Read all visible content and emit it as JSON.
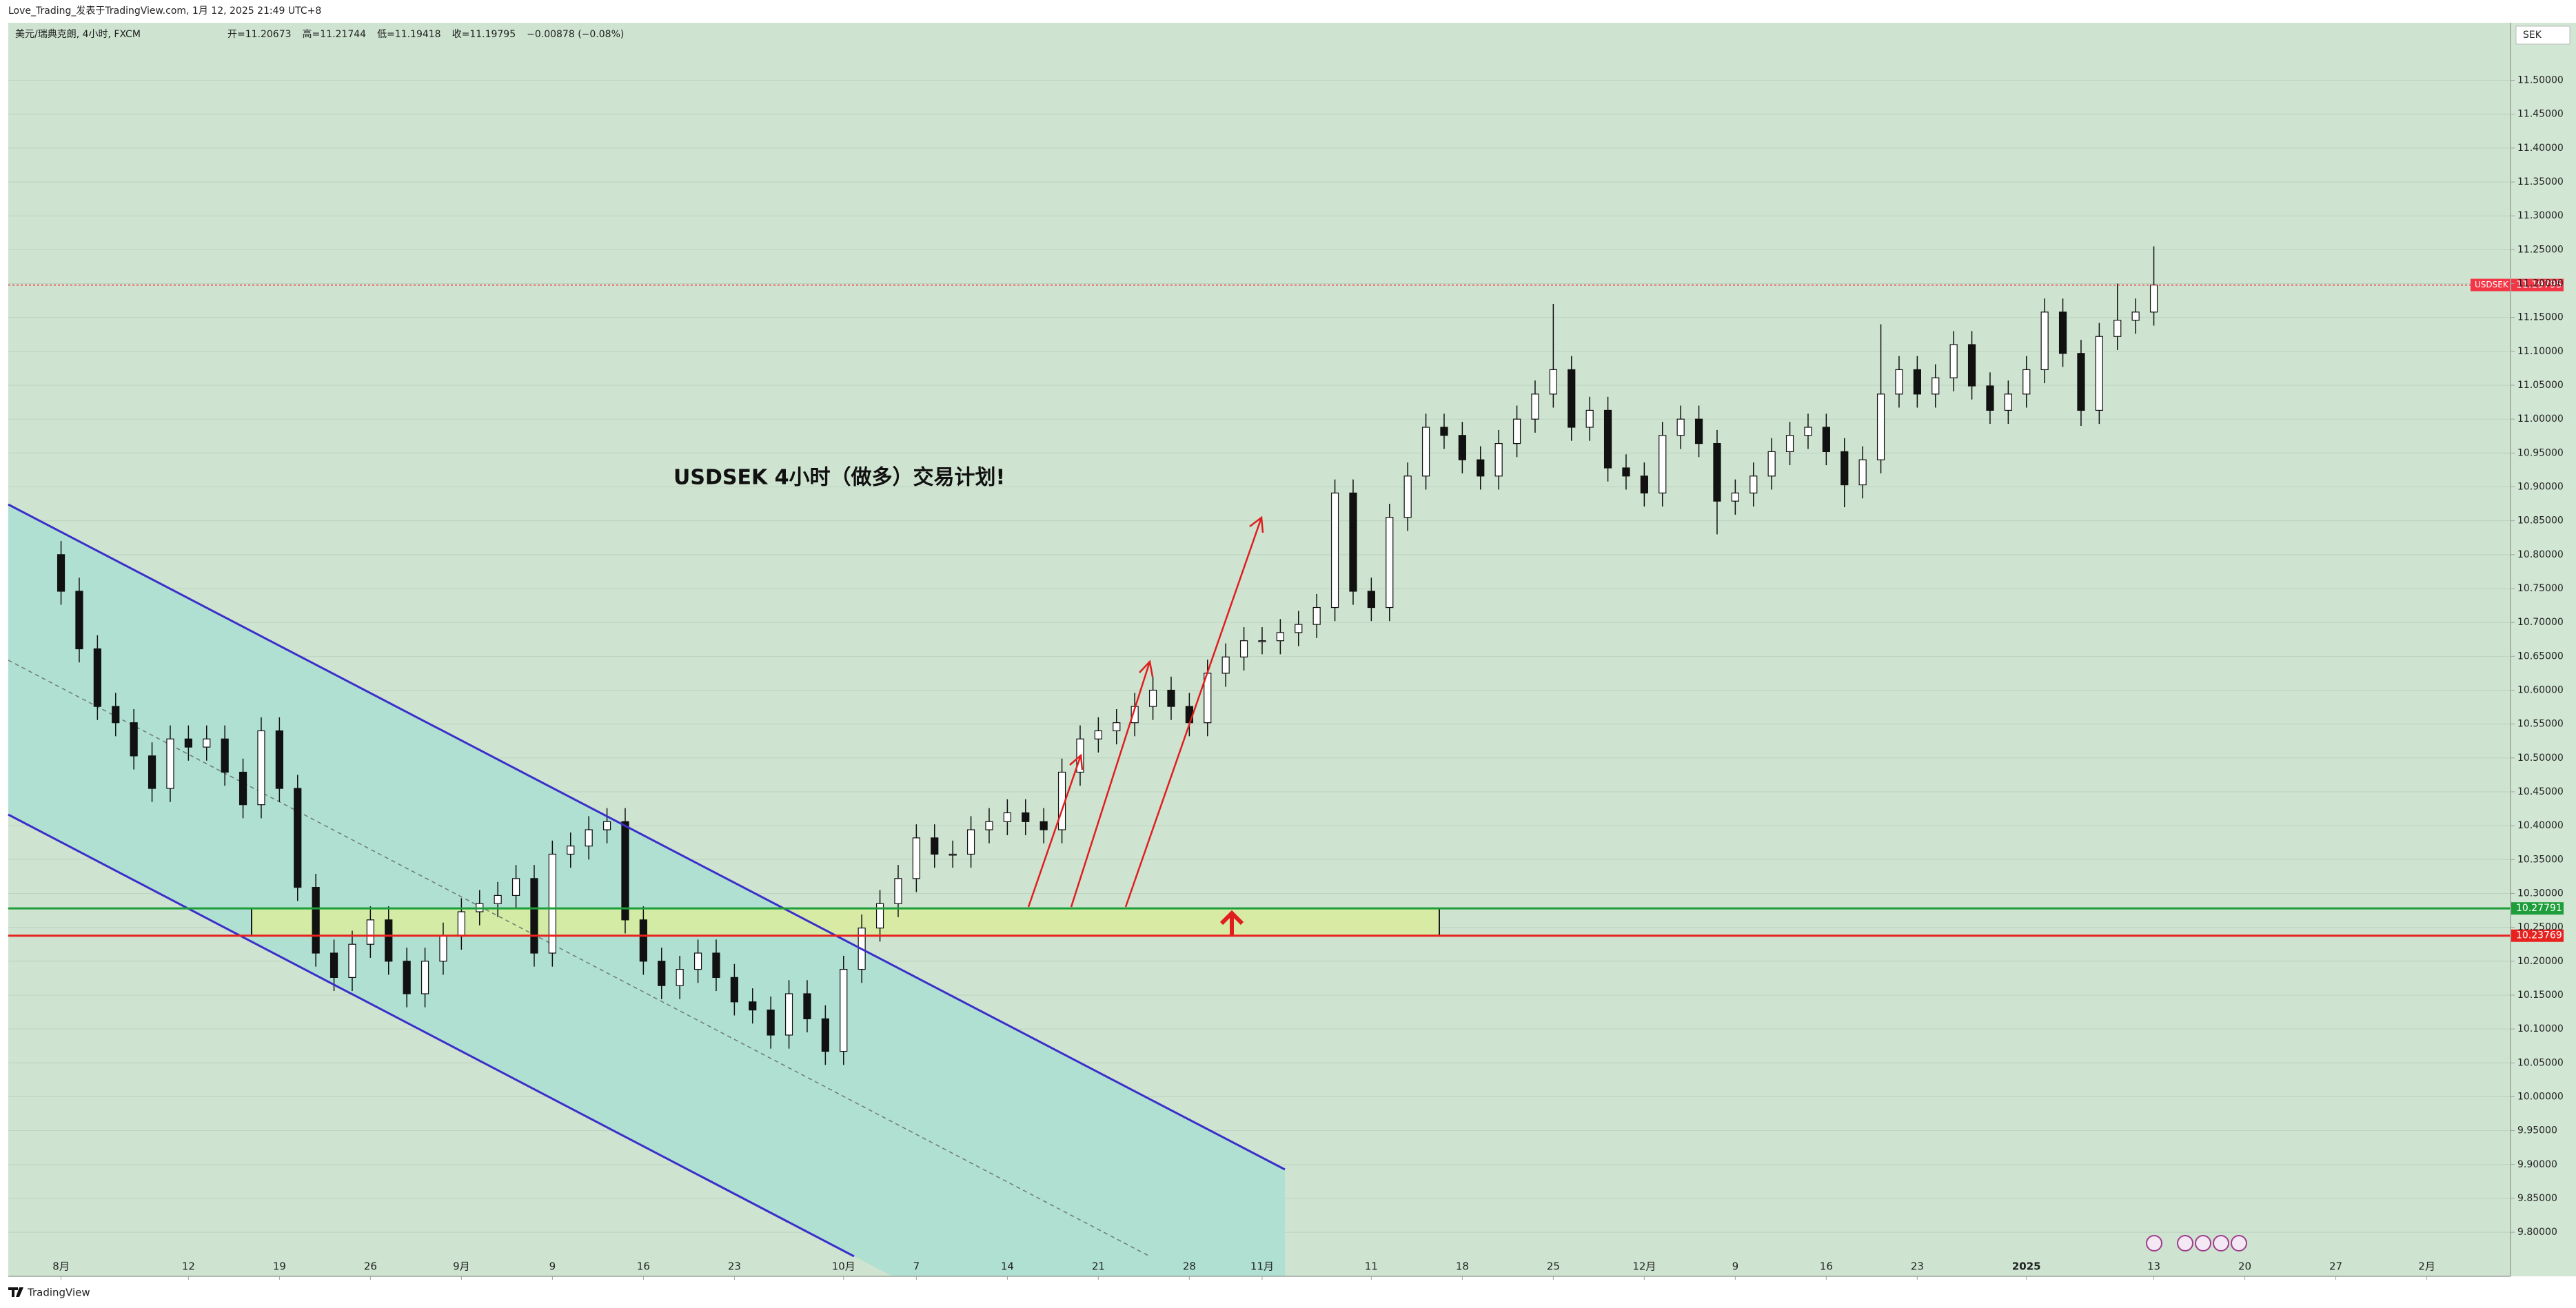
{
  "chart_data": {
    "type": "candlestick",
    "source_line": "Love_Trading_发表于TradingView.com, 1月 12, 2025 21:49 UTC+8",
    "legend_title": "美元/瑞典克朗, 4小时, FXCM",
    "legend_values": [
      "开=11.20673",
      "高=11.21744",
      "低=11.19418",
      "收=11.19795",
      "−0.00878 (−0.08%)"
    ],
    "annotation": "USDSEK  4小时（做多）交易计划!",
    "currency": "SEK",
    "symbol": "USDSEK",
    "last_price": 11.19795,
    "last_color": "#f23645",
    "levels": [
      {
        "value": 10.27791,
        "color": "#1e9e3a"
      },
      {
        "value": 10.23769,
        "color": "#e8231f"
      }
    ],
    "zone_color": "#d9ec9c",
    "up_color": "#ffffff",
    "down_color": "#111111",
    "grid": true,
    "footer": "TradingView",
    "x": [
      0,
      1,
      2,
      3,
      4,
      5,
      6,
      7,
      8,
      9,
      10,
      11,
      12,
      13,
      14,
      15,
      16,
      17,
      18,
      19,
      20,
      21,
      22,
      23,
      24,
      25,
      26,
      27,
      28,
      29,
      30,
      31,
      32,
      33,
      34,
      35,
      36,
      37,
      38,
      39,
      40,
      41,
      42,
      43,
      44,
      45,
      46,
      47,
      48,
      49,
      50,
      51,
      52,
      53,
      54,
      55,
      56,
      57,
      58,
      59,
      60,
      61,
      62,
      63,
      64,
      65,
      66,
      67,
      68,
      69,
      70,
      71,
      72,
      73,
      74,
      75,
      76,
      77,
      78,
      79,
      80,
      81,
      82,
      83,
      84,
      85,
      86,
      87,
      88,
      89,
      90,
      91,
      92,
      93,
      94,
      95,
      96,
      97,
      98,
      99,
      100,
      101,
      102,
      103,
      104,
      105,
      106,
      107,
      108,
      109,
      110,
      111,
      112,
      113,
      114,
      115
    ],
    "open": [
      10.8,
      10.746,
      10.661,
      10.576,
      10.552,
      10.503,
      10.455,
      10.528,
      10.516,
      10.528,
      10.479,
      10.431,
      10.54,
      10.455,
      10.309,
      10.212,
      10.176,
      10.225,
      10.261,
      10.2,
      10.152,
      10.2,
      10.237,
      10.273,
      10.285,
      10.297,
      10.322,
      10.212,
      10.358,
      10.37,
      10.394,
      10.406,
      10.261,
      10.2,
      10.164,
      10.188,
      10.212,
      10.176,
      10.14,
      10.128,
      10.091,
      10.152,
      10.115,
      10.067,
      10.188,
      10.249,
      10.285,
      10.322,
      10.382,
      10.358,
      10.358,
      10.394,
      10.406,
      10.419,
      10.406,
      10.394,
      10.479,
      10.528,
      10.54,
      10.552,
      10.576,
      10.6,
      10.576,
      10.552,
      10.625,
      10.649,
      10.673,
      10.673,
      10.685,
      10.697,
      10.722,
      10.891,
      10.746,
      10.722,
      10.855,
      10.916,
      10.988,
      10.976,
      10.94,
      10.916,
      10.964,
      11.0,
      11.037,
      11.073,
      10.988,
      11.013,
      10.928,
      10.916,
      10.891,
      10.976,
      11.0,
      10.964,
      10.879,
      10.891,
      10.916,
      10.952,
      10.976,
      10.988,
      10.952,
      10.903,
      10.94,
      11.037,
      11.073,
      11.037,
      11.061,
      11.11,
      11.049,
      11.013,
      11.037,
      11.073,
      11.158,
      11.097,
      11.013,
      11.122,
      11.146,
      11.158
    ],
    "high": [
      10.82,
      10.766,
      10.681,
      10.596,
      10.572,
      10.523,
      10.548,
      10.548,
      10.548,
      10.548,
      10.499,
      10.56,
      10.56,
      10.475,
      10.329,
      10.232,
      10.245,
      10.281,
      10.281,
      10.22,
      10.22,
      10.257,
      10.293,
      10.305,
      10.317,
      10.342,
      10.342,
      10.378,
      10.39,
      10.414,
      10.426,
      10.426,
      10.281,
      10.22,
      10.208,
      10.232,
      10.232,
      10.196,
      10.16,
      10.148,
      10.172,
      10.172,
      10.135,
      10.208,
      10.269,
      10.305,
      10.342,
      10.402,
      10.402,
      10.378,
      10.414,
      10.426,
      10.439,
      10.439,
      10.426,
      10.499,
      10.548,
      10.56,
      10.572,
      10.596,
      10.62,
      10.62,
      10.596,
      10.645,
      10.669,
      10.693,
      10.693,
      10.705,
      10.717,
      10.742,
      10.911,
      10.911,
      10.766,
      10.875,
      10.936,
      11.008,
      11.008,
      10.996,
      10.96,
      10.984,
      11.02,
      11.057,
      11.17,
      11.093,
      11.033,
      11.033,
      10.948,
      10.936,
      10.996,
      11.02,
      11.02,
      10.984,
      10.911,
      10.936,
      10.972,
      10.996,
      11.008,
      11.008,
      10.972,
      10.96,
      11.14,
      11.093,
      11.093,
      11.081,
      11.13,
      11.13,
      11.069,
      11.057,
      11.093,
      11.178,
      11.178,
      11.117,
      11.142,
      11.2,
      11.178,
      11.255
    ],
    "low": [
      10.726,
      10.641,
      10.556,
      10.532,
      10.483,
      10.435,
      10.435,
      10.496,
      10.496,
      10.459,
      10.411,
      10.411,
      10.435,
      10.289,
      10.192,
      10.156,
      10.156,
      10.205,
      10.18,
      10.132,
      10.132,
      10.18,
      10.217,
      10.253,
      10.265,
      10.277,
      10.192,
      10.192,
      10.338,
      10.35,
      10.374,
      10.241,
      10.18,
      10.144,
      10.144,
      10.168,
      10.156,
      10.12,
      10.108,
      10.071,
      10.071,
      10.095,
      10.047,
      10.047,
      10.168,
      10.229,
      10.265,
      10.302,
      10.338,
      10.338,
      10.338,
      10.374,
      10.386,
      10.386,
      10.374,
      10.374,
      10.459,
      10.508,
      10.52,
      10.532,
      10.556,
      10.556,
      10.532,
      10.532,
      10.605,
      10.629,
      10.653,
      10.653,
      10.665,
      10.677,
      10.702,
      10.726,
      10.702,
      10.702,
      10.835,
      10.896,
      10.956,
      10.92,
      10.896,
      10.896,
      10.944,
      10.98,
      11.017,
      10.968,
      10.968,
      10.908,
      10.896,
      10.871,
      10.871,
      10.956,
      10.944,
      10.83,
      10.859,
      10.871,
      10.896,
      10.932,
      10.956,
      10.932,
      10.87,
      10.883,
      10.92,
      11.017,
      11.017,
      11.017,
      11.041,
      11.029,
      10.993,
      10.993,
      11.017,
      11.053,
      11.077,
      10.99,
      10.993,
      11.102,
      11.126,
      11.138
    ],
    "close": [
      10.746,
      10.661,
      10.576,
      10.552,
      10.503,
      10.455,
      10.528,
      10.516,
      10.528,
      10.479,
      10.431,
      10.54,
      10.455,
      10.309,
      10.212,
      10.176,
      10.225,
      10.261,
      10.2,
      10.152,
      10.2,
      10.237,
      10.273,
      10.285,
      10.297,
      10.322,
      10.212,
      10.358,
      10.37,
      10.394,
      10.406,
      10.261,
      10.2,
      10.164,
      10.188,
      10.212,
      10.176,
      10.14,
      10.128,
      10.091,
      10.152,
      10.115,
      10.067,
      10.188,
      10.249,
      10.285,
      10.322,
      10.382,
      10.358,
      10.358,
      10.394,
      10.406,
      10.419,
      10.406,
      10.394,
      10.479,
      10.528,
      10.54,
      10.552,
      10.576,
      10.6,
      10.576,
      10.552,
      10.625,
      10.649,
      10.673,
      10.673,
      10.685,
      10.697,
      10.722,
      10.891,
      10.746,
      10.722,
      10.855,
      10.916,
      10.988,
      10.976,
      10.94,
      10.916,
      10.964,
      11.0,
      11.037,
      11.073,
      10.988,
      11.013,
      10.928,
      10.916,
      10.891,
      10.976,
      11.0,
      10.964,
      10.879,
      10.891,
      10.916,
      10.952,
      10.976,
      10.988,
      10.952,
      10.903,
      10.94,
      11.037,
      11.073,
      11.037,
      11.061,
      11.11,
      11.049,
      11.013,
      11.037,
      11.073,
      11.158,
      11.097,
      11.013,
      11.122,
      11.146,
      11.158,
      11.198
    ],
    "xlim": [
      -2.9,
      134.6
    ],
    "xticks": [
      {
        "value": 0,
        "label": "8月"
      },
      {
        "value": 7,
        "label": "12"
      },
      {
        "value": 12,
        "label": "19"
      },
      {
        "value": 17,
        "label": "26"
      },
      {
        "value": 22,
        "label": "9月"
      },
      {
        "value": 27,
        "label": "9"
      },
      {
        "value": 32,
        "label": "16"
      },
      {
        "value": 37,
        "label": "23"
      },
      {
        "value": 43,
        "label": "10月"
      },
      {
        "value": 47,
        "label": "7"
      },
      {
        "value": 52,
        "label": "14"
      },
      {
        "value": 57,
        "label": "21"
      },
      {
        "value": 62,
        "label": "28"
      },
      {
        "value": 66,
        "label": "11月"
      },
      {
        "value": 72,
        "label": "11"
      },
      {
        "value": 77,
        "label": "18"
      },
      {
        "value": 82,
        "label": "25"
      },
      {
        "value": 87,
        "label": "12月"
      },
      {
        "value": 92,
        "label": "9"
      },
      {
        "value": 97,
        "label": "16"
      },
      {
        "value": 102,
        "label": "23"
      },
      {
        "value": 108,
        "label": "2025"
      },
      {
        "value": 115,
        "label": "13"
      },
      {
        "value": 120,
        "label": "20"
      },
      {
        "value": 125,
        "label": "27"
      },
      {
        "value": 130,
        "label": "2月"
      }
    ],
    "ylim": [
      9.735,
      11.585
    ],
    "yticks": [
      {
        "value": 9.8,
        "label": "9.80000"
      },
      {
        "value": 9.85,
        "label": "9.85000"
      },
      {
        "value": 9.9,
        "label": "9.90000"
      },
      {
        "value": 9.95,
        "label": "9.95000"
      },
      {
        "value": 10,
        "label": "10.00000"
      },
      {
        "value": 10.05,
        "label": "10.05000"
      },
      {
        "value": 10.1,
        "label": "10.10000"
      },
      {
        "value": 10.15,
        "label": "10.15000"
      },
      {
        "value": 10.2,
        "label": "10.20000"
      },
      {
        "value": 10.25,
        "label": "10.25000"
      },
      {
        "value": 10.3,
        "label": "10.30000"
      },
      {
        "value": 10.35,
        "label": "10.35000"
      },
      {
        "value": 10.4,
        "label": "10.40000"
      },
      {
        "value": 10.45,
        "label": "10.45000"
      },
      {
        "value": 10.5,
        "label": "10.50000"
      },
      {
        "value": 10.55,
        "label": "10.55000"
      },
      {
        "value": 10.6,
        "label": "10.60000"
      },
      {
        "value": 10.65,
        "label": "10.65000"
      },
      {
        "value": 10.7,
        "label": "10.70000"
      },
      {
        "value": 10.75,
        "label": "10.75000"
      },
      {
        "value": 10.8,
        "label": "10.80000"
      },
      {
        "value": 10.85,
        "label": "10.85000"
      },
      {
        "value": 10.9,
        "label": "10.90000"
      },
      {
        "value": 10.95,
        "label": "10.95000"
      },
      {
        "value": 11,
        "label": "11.00000"
      },
      {
        "value": 11.05,
        "label": "11.05000"
      },
      {
        "value": 11.1,
        "label": "11.10000"
      },
      {
        "value": 11.15,
        "label": "11.15000"
      },
      {
        "value": 11.2,
        "label": "11.20000"
      },
      {
        "value": 11.25,
        "label": "11.25000"
      },
      {
        "value": 11.3,
        "label": "11.30000"
      },
      {
        "value": 11.35,
        "label": "11.35000"
      },
      {
        "value": 11.4,
        "label": "11.40000"
      },
      {
        "value": 11.45,
        "label": "11.45000"
      },
      {
        "value": 11.5,
        "label": "11.50000"
      }
    ]
  }
}
